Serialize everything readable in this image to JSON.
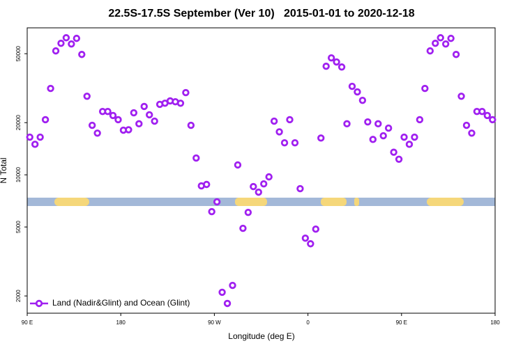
{
  "chart_data": {
    "type": "scatter",
    "title": "22.5S-17.5S September (Ver 10)   2015-01-01 to 2020-12-18",
    "x_label": "Longitude (deg E)",
    "y_label": "N Total",
    "y_log": true,
    "legend_position": "bottom-left",
    "xlim": [
      90,
      540
    ],
    "xticks": [
      {
        "value": 90,
        "label": "90 E"
      },
      {
        "value": 180,
        "label": "180"
      },
      {
        "value": 270,
        "label": "90 W"
      },
      {
        "value": 360,
        "label": "0"
      },
      {
        "value": 450,
        "label": "90 E"
      },
      {
        "value": 540,
        "label": "180"
      }
    ],
    "ylim": [
      1590,
      70500
    ],
    "yticks": [
      2000,
      5000,
      10000,
      20000,
      50000
    ],
    "series": [
      {
        "name": "Land (Nadir&Glint) and Ocean (Glint)",
        "color": "#a020f0",
        "x": [
          92.5,
          97.5,
          102.5,
          107.5,
          112.5,
          117.5,
          122.5,
          127.5,
          132.5,
          137.5,
          142.5,
          147.5,
          152.5,
          157.5,
          162.5,
          167.5,
          172.5,
          177.5,
          182.5,
          187.5,
          192.5,
          197.5,
          202.5,
          207.5,
          212.5,
          217.5,
          222.5,
          227.5,
          232.5,
          237.5,
          242.5,
          247.5,
          252.5,
          257.5,
          262.5,
          267.5,
          272.5,
          277.5,
          282.5,
          287.5,
          292.5,
          297.5,
          302.5,
          307.5,
          312.5,
          317.5,
          322.5,
          327.5,
          332.5,
          337.5,
          342.5,
          347.5,
          352.5,
          357.5,
          362.5,
          367.5,
          372.5,
          377.5,
          382.5,
          387.5,
          392.5,
          397.5,
          402.5,
          407.5,
          412.5,
          417.5,
          422.5,
          427.5,
          432.5,
          437.5,
          442.5,
          447.5,
          452.5,
          457.5,
          462.5,
          467.5,
          472.5,
          477.5,
          482.5,
          487.5,
          492.5,
          497.5,
          502.5,
          507.5,
          512.5,
          517.5,
          522.5,
          527.5,
          532.5,
          537.5
        ],
        "values": [
          16500,
          15000,
          16500,
          20800,
          31500,
          51900,
          57400,
          61800,
          56900,
          61300,
          49500,
          28400,
          19300,
          17400,
          23200,
          23200,
          22000,
          20800,
          18100,
          18200,
          22800,
          19700,
          24800,
          22200,
          20400,
          25500,
          25900,
          26700,
          26400,
          25900,
          29800,
          19300,
          12500,
          8630,
          8800,
          6130,
          6980,
          2100,
          1810,
          2300,
          11400,
          4910,
          6070,
          8550,
          7940,
          8870,
          9730,
          20400,
          17700,
          15300,
          20800,
          15300,
          8320,
          4310,
          4000,
          4860,
          16300,
          42300,
          47300,
          44800,
          41900,
          19700,
          32400,
          30100,
          26900,
          20200,
          16000,
          19700,
          16800,
          18600,
          13500,
          12300,
          16500,
          15000,
          16500,
          20800,
          31500,
          51900,
          57400,
          61800,
          56900,
          61300,
          49500,
          28400,
          19300,
          17400,
          23200,
          23200,
          22000,
          20800
        ]
      }
    ]
  }
}
